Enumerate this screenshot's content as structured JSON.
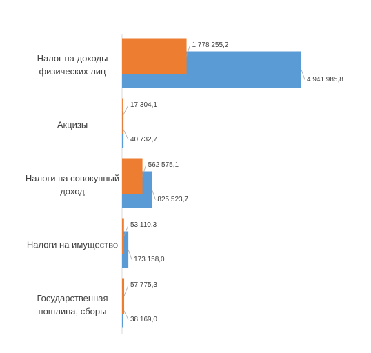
{
  "chart_data": {
    "type": "bar",
    "orientation": "horizontal",
    "categories": [
      "Налог на доходы физических лиц",
      "Акцизы",
      "Налоги на совокупный доход",
      "Налоги на имущество",
      "Государственная пошлина, сборы"
    ],
    "series": [
      {
        "color": "#5b9bd5",
        "values": [
          4941985.8,
          40732.7,
          825523.7,
          173158.0,
          38169.0
        ],
        "value_labels": [
          "4 941 985,8",
          "40 732,7",
          "825 523,7",
          "173 158,0",
          "38 169,0"
        ]
      },
      {
        "color": "#ed7d31",
        "values": [
          1778255.2,
          17304.1,
          562575.1,
          53110.3,
          57775.3
        ],
        "value_labels": [
          "1 778 255,2",
          "17 304,1",
          "562 575,1",
          "53 110,3",
          "57 775,3"
        ]
      }
    ]
  }
}
